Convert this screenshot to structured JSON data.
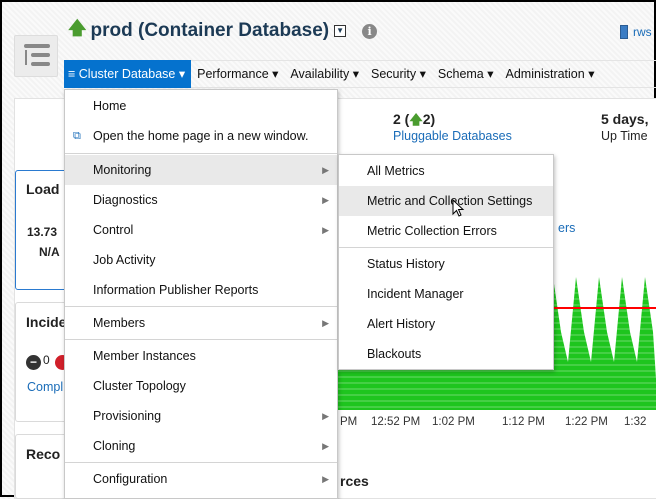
{
  "header": {
    "title": "prod (Container Database)",
    "status_icon": "up-arrow-icon",
    "host": "rws"
  },
  "nav": {
    "items": [
      "Cluster Database",
      "Performance",
      "Availability",
      "Security",
      "Schema",
      "Administration"
    ]
  },
  "summary": {
    "pdb_value": "2 (",
    "pdb_up": "2)",
    "pdb_label": "Pluggable Databases",
    "uptime_value": "5 days,",
    "uptime_label": "Up Time"
  },
  "panels": {
    "load_title": "Load",
    "load_value": "13.73",
    "load_na": "N/A",
    "incidents_title": "Incide",
    "incidents_count": "0",
    "incidents_link": "Compl",
    "reco_title": "Reco",
    "resources_title": "rces",
    "members_link": "ers"
  },
  "menu": {
    "items": [
      {
        "label": "Home",
        "submenu": false
      },
      {
        "label": "Open the home page in a new window.",
        "submenu": false,
        "icon": "new-window-icon"
      },
      {
        "label": "Monitoring",
        "submenu": true,
        "highlighted": true
      },
      {
        "label": "Diagnostics",
        "submenu": true
      },
      {
        "label": "Control",
        "submenu": true
      },
      {
        "label": "Job Activity",
        "submenu": false
      },
      {
        "label": "Information Publisher Reports",
        "submenu": false
      },
      {
        "label": "Members",
        "submenu": true
      },
      {
        "label": "Member Instances",
        "submenu": false
      },
      {
        "label": "Cluster Topology",
        "submenu": false
      },
      {
        "label": "Provisioning",
        "submenu": true
      },
      {
        "label": "Cloning",
        "submenu": true
      },
      {
        "label": "Configuration",
        "submenu": true
      }
    ]
  },
  "submenu": {
    "items": [
      "All Metrics",
      "Metric and Collection Settings",
      "Metric Collection Errors",
      "Status History",
      "Incident Manager",
      "Alert History",
      "Blackouts"
    ],
    "highlighted": "Metric and Collection Settings"
  },
  "chart": {
    "x_ticks": [
      "PM",
      "12:52 PM",
      "1:02 PM",
      "1:12 PM",
      "1:22 PM",
      "1:32"
    ],
    "fill_color": "#1ec51e",
    "threshold_color": "#ff0000"
  },
  "colors": {
    "accent": "#0572ce",
    "link": "#1a6cb8"
  }
}
